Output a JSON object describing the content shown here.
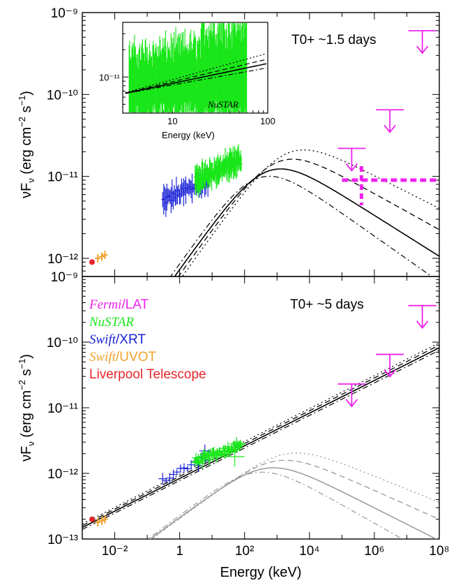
{
  "figure": {
    "ylabel_html": "νF",
    "ylabel_sub": "ν",
    "ylabel_units": "(erg cm",
    "ylabel_units2": "s",
    "xlabel": "Energy (keV)"
  },
  "chart_data": [
    {
      "type": "scatter",
      "panel": "top",
      "annotation": "T0+ ~1.5 days",
      "xlabel": "",
      "ylabel": "νFν (erg cm⁻² s⁻¹)",
      "x_scale": "log",
      "y_scale": "log",
      "xlim": [
        0.001,
        100000000
      ],
      "ylim": [
        6e-13,
        1e-09
      ],
      "x_tick_labels": [
        "10⁻²",
        "1",
        "10²",
        "10⁴",
        "10⁶",
        "10⁸"
      ],
      "y_tick_labels": [
        "10⁻⁹",
        "10⁻¹⁰",
        "10⁻¹¹",
        "10⁻¹²"
      ],
      "series": [
        {
          "name": "Liverpool Telescope",
          "color": "#e8242a",
          "points": [
            [
              0.002,
              9e-13
            ]
          ]
        },
        {
          "name": "Swift/UVOT",
          "color": "#f0a22e",
          "points": [
            [
              0.003,
              1e-12
            ],
            [
              0.004,
              1.05e-12
            ],
            [
              0.005,
              1.1e-12
            ]
          ]
        },
        {
          "name": "Swift/XRT",
          "color": "#1a22d6",
          "x_range": [
            0.3,
            8
          ],
          "y_range": [
            5e-12,
            9e-12
          ]
        },
        {
          "name": "NuSTAR",
          "color": "#19e619",
          "x_range": [
            3,
            79
          ],
          "y_range": [
            9e-12,
            1.6e-11
          ]
        },
        {
          "name": "Fermi/LAT upper limits",
          "color": "#ee22ee",
          "upper_limits": [
            [
              200000,
              2.2e-11
            ],
            [
              3000000,
              6.5e-11
            ],
            [
              30000000,
              6e-10
            ]
          ]
        },
        {
          "name": "Fermi/LAT",
          "color": "#ee22ee",
          "points": [
            [
              400000,
              9e-12
            ]
          ],
          "x_err": [
            100000,
            100000000
          ]
        }
      ],
      "models": [
        {
          "style": "solid",
          "color": "#000000"
        },
        {
          "style": "dashed",
          "color": "#000000"
        },
        {
          "style": "dotted",
          "color": "#000000"
        },
        {
          "style": "dash-dot",
          "color": "#000000"
        }
      ],
      "inset": {
        "label": "NuSTAR",
        "xlabel": "Energy (keV)",
        "xlim": [
          3,
          100
        ],
        "x_tick_labels": [
          "10",
          "100"
        ],
        "y_tick_labels": [
          "10⁻¹¹"
        ]
      }
    },
    {
      "type": "scatter",
      "panel": "bottom",
      "annotation": "T0+ ~5 days",
      "xlabel": "Energy (keV)",
      "ylabel": "νFν (erg cm⁻² s⁻¹)",
      "x_scale": "log",
      "y_scale": "log",
      "xlim": [
        0.001,
        100000000
      ],
      "ylim": [
        1e-13,
        1e-09
      ],
      "x_tick_labels": [
        "10⁻²",
        "1",
        "10²",
        "10⁴",
        "10⁶",
        "10⁸"
      ],
      "y_tick_labels": [
        "10⁻⁹",
        "10⁻¹⁰",
        "10⁻¹¹",
        "10⁻¹²",
        "10⁻¹³"
      ],
      "legend": [
        {
          "italic": "Fermi",
          "rest": "/LAT",
          "color": "#ee22ee"
        },
        {
          "italic": "NuSTAR",
          "rest": "",
          "color": "#19e619"
        },
        {
          "italic": "Swift",
          "rest": "/XRT",
          "color": "#1a22d6"
        },
        {
          "italic": "Swift",
          "rest": "/UVOT",
          "color": "#f0a22e"
        },
        {
          "italic": "",
          "rest": "Liverpool Telescope",
          "color": "#e8242a"
        }
      ],
      "series": [
        {
          "name": "Liverpool Telescope",
          "color": "#e8242a",
          "points": [
            [
              0.002,
              2e-13
            ]
          ]
        },
        {
          "name": "Swift/UVOT",
          "color": "#f0a22e",
          "points": [
            [
              0.003,
              1.8e-13
            ],
            [
              0.004,
              1.9e-13
            ],
            [
              0.005,
              2e-13
            ]
          ]
        },
        {
          "name": "Swift/XRT",
          "color": "#1a22d6",
          "x_range": [
            0.3,
            8
          ],
          "y_range": [
            8e-13,
            1.8e-12
          ]
        },
        {
          "name": "NuSTAR",
          "color": "#19e619",
          "x_range": [
            3,
            79
          ],
          "y_range": [
            1.5e-12,
            2.8e-12
          ]
        },
        {
          "name": "Fermi/LAT upper limits",
          "color": "#ee22ee",
          "upper_limits": [
            [
              200000,
              2.3e-11
            ],
            [
              3000000,
              6.5e-11
            ],
            [
              30000000,
              3.6e-10
            ]
          ]
        }
      ],
      "models": [
        {
          "style": "solid",
          "color": "#000000"
        },
        {
          "style": "dashed",
          "color": "#000000"
        },
        {
          "style": "solid",
          "color": "#999999"
        },
        {
          "style": "dashed",
          "color": "#999999"
        },
        {
          "style": "dotted",
          "color": "#999999"
        }
      ]
    }
  ]
}
